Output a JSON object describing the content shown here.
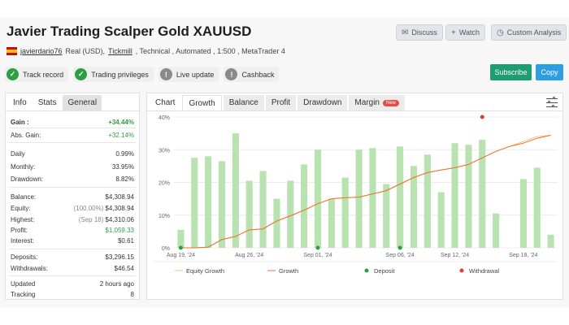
{
  "header": {
    "title": "Javier Trading Scalper Gold XAUUSD",
    "discuss_label": "Discuss",
    "watch_label": "Watch",
    "custom_analysis_label": "Custom Analysis",
    "author": "javierdario76",
    "meta_prefix": "Real (USD),",
    "broker": "Tickmill",
    "meta_suffix": ", Technical , Automated , 1:500 , MetaTrader 4"
  },
  "badges": [
    {
      "label": "Track record",
      "status": "ok"
    },
    {
      "label": "Trading privileges",
      "status": "ok"
    },
    {
      "label": "Live update",
      "status": "info"
    },
    {
      "label": "Cashback",
      "status": "info"
    }
  ],
  "actions": {
    "subscribe_label": "Subscribe",
    "copy_label": "Copy"
  },
  "stats_tabs": [
    "Info",
    "Stats",
    "General"
  ],
  "stats": {
    "gain": {
      "label": "Gain :",
      "value": "+34.44%"
    },
    "abs_gain": {
      "label": "Abs. Gain:",
      "value": "+32.14%"
    },
    "daily": {
      "label": "Daily",
      "value": "0.99%"
    },
    "monthly": {
      "label": "Monthly:",
      "value": "33.95%"
    },
    "drawdown": {
      "label": "Drawdown:",
      "value": "8.82%"
    },
    "balance": {
      "label": "Balance:",
      "value": "$4,308.94"
    },
    "equity": {
      "label": "Equity:",
      "note": "(100.00%)",
      "value": "$4,308.94"
    },
    "highest": {
      "label": "Highest:",
      "note": "(Sep 18)",
      "value": "$4,310.06"
    },
    "profit": {
      "label": "Profit:",
      "value": "$1,059.33"
    },
    "interest": {
      "label": "Interest:",
      "value": "$0.61"
    },
    "deposits": {
      "label": "Deposits:",
      "value": "$3,296.15"
    },
    "withdrawals": {
      "label": "Withdrawals:",
      "value": "$46.54"
    },
    "updated": {
      "label": "Updated",
      "value": "2 hours ago"
    },
    "tracking": {
      "label": "Tracking",
      "value": "8"
    }
  },
  "chart_tabs": {
    "chart": "Chart",
    "growth": "Growth",
    "balance": "Balance",
    "profit": "Profit",
    "drawdown": "Drawdown",
    "margin": "Margin",
    "new_badge": "New"
  },
  "colors": {
    "bar": "#b8e2b0",
    "growth": "#e8712c",
    "equity": "#f5c27a",
    "deposit": "#2e9e44",
    "withdrawal": "#e23b3b"
  },
  "chart_data": {
    "type": "bar",
    "yticks": [
      "0%",
      "10%",
      "20%",
      "30%",
      "40%"
    ],
    "xticks": [
      {
        "label": "Aug 19, '24",
        "index": 0
      },
      {
        "label": "Aug 26, '24",
        "index": 5
      },
      {
        "label": "Sep 01, '24",
        "index": 10
      },
      {
        "label": "Sep 06, '24",
        "index": 16
      },
      {
        "label": "Sep 12, '24",
        "index": 20
      },
      {
        "label": "Sep 18, '24",
        "index": 25
      }
    ],
    "ylim": [
      0,
      40
    ],
    "bars": [
      5.5,
      27.5,
      28,
      26.5,
      35,
      20.5,
      23.5,
      15,
      20.5,
      25.5,
      30,
      15,
      21.5,
      30,
      30.5,
      19.5,
      31,
      25,
      28.5,
      17,
      32,
      31.5,
      33,
      10.5,
      0,
      21,
      24.5,
      4
    ],
    "growth": [
      0,
      0,
      0.2,
      2.5,
      3.5,
      5.5,
      5.8,
      8.2,
      9.8,
      11.5,
      13.5,
      15,
      15.3,
      15.5,
      16.5,
      17.5,
      19.5,
      21.5,
      23,
      23.8,
      24.5,
      25.5,
      27.5,
      29.5,
      31,
      32,
      33.5,
      34.4
    ],
    "equity_growth": [
      0,
      0,
      0.2,
      2.5,
      3.5,
      5.5,
      5.8,
      8.2,
      9.8,
      11.5,
      13.5,
      15,
      15.3,
      15.5,
      16.5,
      17.5,
      19.5,
      21.5,
      23,
      23.8,
      24.5,
      25.5,
      27.5,
      29.5,
      31,
      32.5,
      34,
      34.4
    ],
    "deposits_at": [
      0,
      10,
      16
    ],
    "withdrawals": [
      {
        "index": 22,
        "value": 40
      }
    ],
    "legend": [
      "Equity Growth",
      "Growth",
      "Deposit",
      "Withdrawal"
    ]
  }
}
